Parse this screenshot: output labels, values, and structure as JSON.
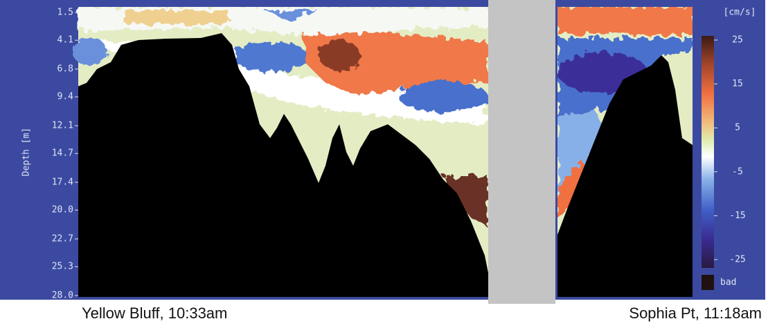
{
  "axis_label": "Depth [m]",
  "depth_ticks": [
    1.5,
    4.1,
    6.8,
    9.4,
    12.1,
    14.7,
    17.4,
    {
      "value": 20.0,
      "label": "20.0"
    },
    22.7,
    25.3,
    {
      "value": 28.0,
      "label": "28.0"
    }
  ],
  "colorbar": {
    "unit": "[cm/s]",
    "ticks": [
      25,
      15,
      5,
      -5,
      -15,
      -25
    ],
    "bad_label": "bad"
  },
  "captions": {
    "left": "Yellow Bluff, 10:33am",
    "right": "Sophia Pt, 11:18am"
  }
}
